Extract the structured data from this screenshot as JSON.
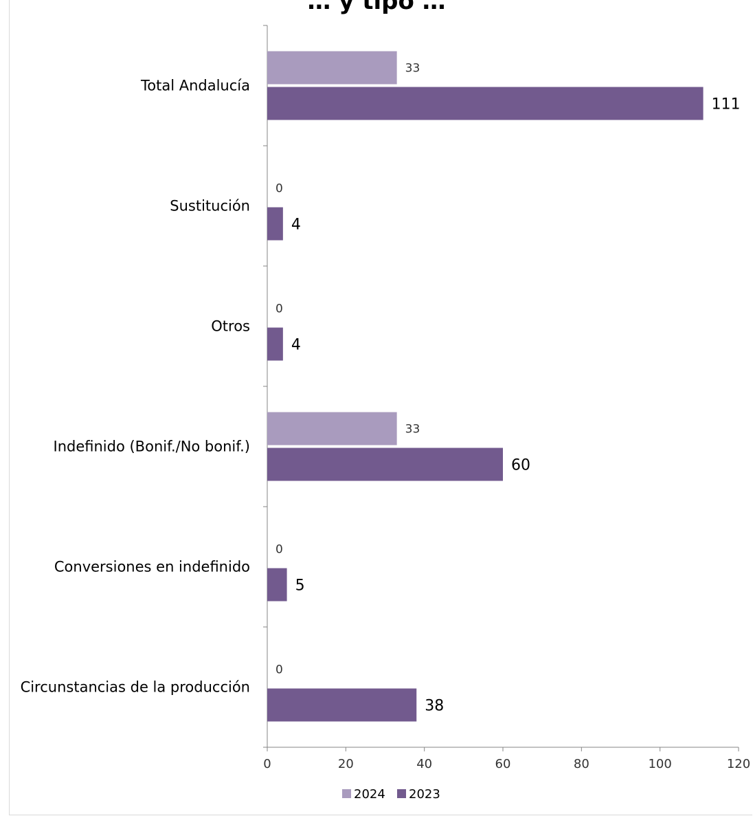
{
  "chart_data": {
    "type": "bar",
    "orientation": "horizontal",
    "title": "… y tipo …",
    "categories": [
      "Total Andalucía",
      "Sustitución",
      "Otros",
      "Indefinido (Bonif./No bonif.)",
      "Conversiones en indefinido",
      "Circunstancias de la producción"
    ],
    "series": [
      {
        "name": "2024",
        "values": [
          33,
          0,
          0,
          33,
          0,
          0
        ],
        "color": "#a99bbe"
      },
      {
        "name": "2023",
        "values": [
          111,
          4,
          4,
          60,
          5,
          38
        ],
        "color": "#725a8e"
      }
    ],
    "xlim": [
      0,
      120
    ],
    "xticks": [
      "0",
      "20",
      "40",
      "60",
      "80",
      "100",
      "120"
    ],
    "grid": false,
    "legend_position": "bottom"
  }
}
